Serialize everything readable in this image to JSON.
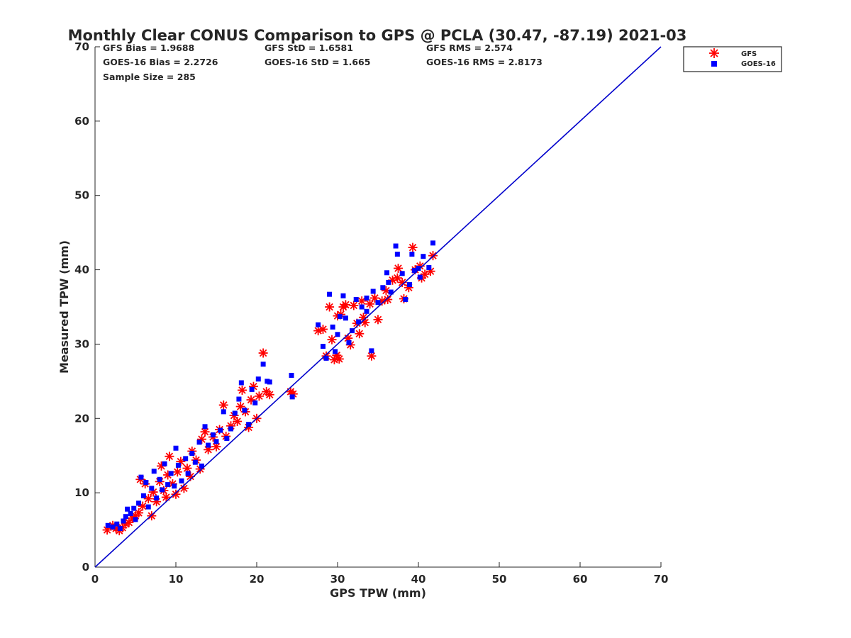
{
  "chart_data": {
    "type": "scatter",
    "title": "Monthly Clear CONUS Comparison to GPS @ PCLA (30.47, -87.19) 2021-03",
    "xlabel": "GPS TPW (mm)",
    "ylabel": "Measured TPW (mm)",
    "xlim": [
      0,
      70
    ],
    "ylim": [
      0,
      70
    ],
    "xticks": [
      "0",
      "10",
      "20",
      "30",
      "40",
      "50",
      "60",
      "70"
    ],
    "yticks": [
      "0",
      "10",
      "20",
      "30",
      "40",
      "50",
      "60",
      "70"
    ],
    "grid": false,
    "legend_placement": "top-right outside",
    "stats": [
      {
        "text": "GFS Bias = 1.9688"
      },
      {
        "text": "GFS StD = 1.6581"
      },
      {
        "text": "GFS RMS = 2.574"
      },
      {
        "text": "GOES-16 Bias = 2.2726"
      },
      {
        "text": "GOES-16 StD = 1.665"
      },
      {
        "text": "GOES-16 RMS = 2.8173"
      },
      {
        "text": "Sample Size = 285"
      }
    ],
    "reference_line": {
      "from": [
        0,
        0
      ],
      "to": [
        70,
        70
      ],
      "color": "#0000cc"
    },
    "series": [
      {
        "name": "GFS",
        "marker": "asterisk",
        "color": "#ff0000",
        "points": [
          [
            1.5,
            5.0
          ],
          [
            2.2,
            5.6
          ],
          [
            2.6,
            5.2
          ],
          [
            3.0,
            4.9
          ],
          [
            3.4,
            5.3
          ],
          [
            3.8,
            5.8
          ],
          [
            4.2,
            6.0
          ],
          [
            4.6,
            6.6
          ],
          [
            5.0,
            6.9
          ],
          [
            5.4,
            7.3
          ],
          [
            5.6,
            11.8
          ],
          [
            5.9,
            8.2
          ],
          [
            6.2,
            11.2
          ],
          [
            6.6,
            9.2
          ],
          [
            7.0,
            6.9
          ],
          [
            7.2,
            10.1
          ],
          [
            7.6,
            8.8
          ],
          [
            8.0,
            11.5
          ],
          [
            8.2,
            13.6
          ],
          [
            8.5,
            10.3
          ],
          [
            8.8,
            9.4
          ],
          [
            9.0,
            12.4
          ],
          [
            9.2,
            14.9
          ],
          [
            9.6,
            11.2
          ],
          [
            10.0,
            9.8
          ],
          [
            10.2,
            12.8
          ],
          [
            10.6,
            14.2
          ],
          [
            11.0,
            10.6
          ],
          [
            11.4,
            13.3
          ],
          [
            11.8,
            12.2
          ],
          [
            12.0,
            15.6
          ],
          [
            12.5,
            14.4
          ],
          [
            13.0,
            13.2
          ],
          [
            13.2,
            17.2
          ],
          [
            13.6,
            18.2
          ],
          [
            14.0,
            15.8
          ],
          [
            14.6,
            17.5
          ],
          [
            15.0,
            16.2
          ],
          [
            15.4,
            18.5
          ],
          [
            15.9,
            21.8
          ],
          [
            16.2,
            17.6
          ],
          [
            16.8,
            19.0
          ],
          [
            17.2,
            20.4
          ],
          [
            17.6,
            19.6
          ],
          [
            18.0,
            21.6
          ],
          [
            18.2,
            23.8
          ],
          [
            18.6,
            20.9
          ],
          [
            19.0,
            18.8
          ],
          [
            19.3,
            22.5
          ],
          [
            19.6,
            24.3
          ],
          [
            20.0,
            20.0
          ],
          [
            20.3,
            23.0
          ],
          [
            20.8,
            28.8
          ],
          [
            21.2,
            23.6
          ],
          [
            21.6,
            23.2
          ],
          [
            24.2,
            23.6
          ],
          [
            24.5,
            23.3
          ],
          [
            27.6,
            31.8
          ],
          [
            28.2,
            32.0
          ],
          [
            28.6,
            28.4
          ],
          [
            29.0,
            35.0
          ],
          [
            29.3,
            30.6
          ],
          [
            29.6,
            27.9
          ],
          [
            29.9,
            28.5
          ],
          [
            30.2,
            28.0
          ],
          [
            30.4,
            34.0
          ],
          [
            30.7,
            35.0
          ],
          [
            31.0,
            35.3
          ],
          [
            31.3,
            30.8
          ],
          [
            31.6,
            29.9
          ],
          [
            32.0,
            35.2
          ],
          [
            32.4,
            32.8
          ],
          [
            32.7,
            31.4
          ],
          [
            33.0,
            35.8
          ],
          [
            33.4,
            32.9
          ],
          [
            34.2,
            28.4
          ],
          [
            34.6,
            36.2
          ],
          [
            35.0,
            33.3
          ],
          [
            35.5,
            35.8
          ],
          [
            36.2,
            36.0
          ],
          [
            36.8,
            38.6
          ],
          [
            37.4,
            38.9
          ],
          [
            37.5,
            40.2
          ],
          [
            38.0,
            38.3
          ],
          [
            38.2,
            36.1
          ],
          [
            38.8,
            37.6
          ],
          [
            39.3,
            43.0
          ],
          [
            39.6,
            40.0
          ],
          [
            40.2,
            40.5
          ],
          [
            40.8,
            39.4
          ],
          [
            41.5,
            39.8
          ],
          [
            41.8,
            41.9
          ],
          [
            40.4,
            38.9
          ],
          [
            36.0,
            37.2
          ],
          [
            34.0,
            35.4
          ],
          [
            33.2,
            33.6
          ],
          [
            30.0,
            33.8
          ]
        ]
      },
      {
        "name": "GOES-16",
        "marker": "square",
        "color": "#0000ff",
        "points": [
          [
            1.6,
            5.6
          ],
          [
            2.2,
            5.4
          ],
          [
            2.7,
            5.8
          ],
          [
            3.1,
            5.2
          ],
          [
            3.5,
            6.2
          ],
          [
            3.8,
            6.8
          ],
          [
            4.0,
            7.8
          ],
          [
            4.4,
            7.2
          ],
          [
            4.8,
            7.9
          ],
          [
            5.0,
            6.4
          ],
          [
            5.4,
            8.6
          ],
          [
            5.7,
            12.1
          ],
          [
            6.0,
            9.6
          ],
          [
            6.3,
            11.4
          ],
          [
            6.6,
            8.1
          ],
          [
            7.0,
            10.6
          ],
          [
            7.3,
            12.9
          ],
          [
            7.6,
            9.3
          ],
          [
            8.0,
            11.8
          ],
          [
            8.3,
            10.4
          ],
          [
            8.6,
            13.9
          ],
          [
            9.0,
            11.1
          ],
          [
            9.4,
            12.6
          ],
          [
            9.8,
            10.9
          ],
          [
            10.0,
            16.0
          ],
          [
            10.3,
            13.7
          ],
          [
            10.7,
            11.6
          ],
          [
            11.2,
            14.6
          ],
          [
            11.5,
            12.6
          ],
          [
            12.0,
            15.3
          ],
          [
            12.4,
            14.1
          ],
          [
            12.9,
            16.8
          ],
          [
            13.2,
            13.6
          ],
          [
            13.6,
            18.9
          ],
          [
            14.0,
            16.4
          ],
          [
            14.6,
            17.8
          ],
          [
            15.0,
            16.9
          ],
          [
            15.5,
            18.4
          ],
          [
            15.9,
            20.9
          ],
          [
            16.3,
            17.3
          ],
          [
            16.8,
            18.6
          ],
          [
            17.3,
            20.7
          ],
          [
            17.8,
            22.6
          ],
          [
            18.1,
            24.8
          ],
          [
            18.5,
            21.1
          ],
          [
            19.0,
            19.2
          ],
          [
            19.4,
            23.9
          ],
          [
            19.8,
            22.1
          ],
          [
            20.2,
            25.3
          ],
          [
            20.8,
            27.3
          ],
          [
            21.3,
            25.0
          ],
          [
            21.6,
            24.9
          ],
          [
            24.3,
            25.8
          ],
          [
            24.4,
            22.9
          ],
          [
            27.6,
            32.6
          ],
          [
            28.2,
            29.7
          ],
          [
            28.6,
            28.1
          ],
          [
            29.0,
            36.7
          ],
          [
            29.4,
            32.3
          ],
          [
            29.7,
            29.0
          ],
          [
            30.0,
            31.3
          ],
          [
            30.3,
            33.7
          ],
          [
            30.7,
            36.5
          ],
          [
            31.0,
            33.5
          ],
          [
            31.4,
            30.2
          ],
          [
            31.8,
            31.8
          ],
          [
            32.3,
            36.0
          ],
          [
            32.6,
            33.0
          ],
          [
            33.0,
            35.0
          ],
          [
            33.6,
            34.4
          ],
          [
            34.2,
            29.1
          ],
          [
            34.4,
            37.1
          ],
          [
            35.0,
            35.6
          ],
          [
            35.6,
            37.6
          ],
          [
            36.1,
            39.6
          ],
          [
            36.6,
            37.0
          ],
          [
            37.2,
            43.2
          ],
          [
            37.4,
            42.1
          ],
          [
            38.0,
            39.5
          ],
          [
            38.4,
            36.0
          ],
          [
            38.9,
            38.0
          ],
          [
            39.2,
            42.1
          ],
          [
            39.5,
            39.9
          ],
          [
            40.0,
            40.2
          ],
          [
            40.6,
            41.8
          ],
          [
            41.3,
            40.3
          ],
          [
            41.8,
            43.6
          ],
          [
            40.2,
            39.0
          ],
          [
            36.3,
            38.3
          ],
          [
            33.6,
            36.2
          ]
        ]
      }
    ]
  }
}
